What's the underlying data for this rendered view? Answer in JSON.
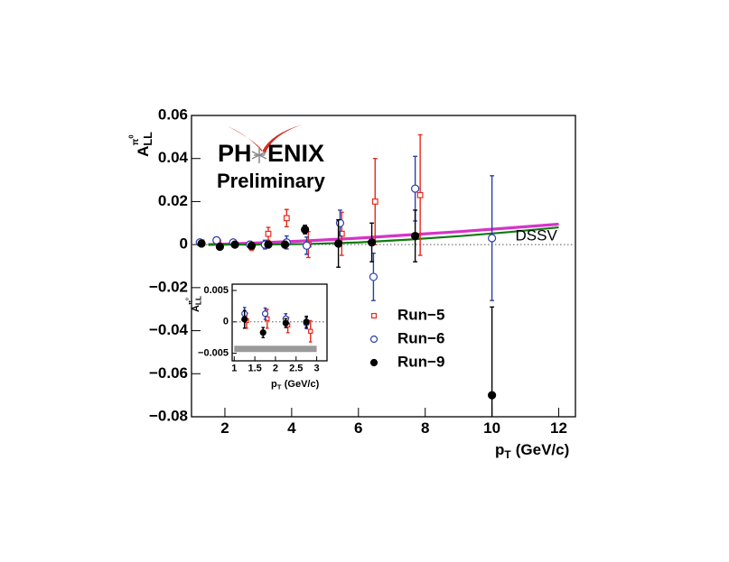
{
  "chart_data": [
    {
      "type": "scatter",
      "y_label": {
        "main": "A",
        "sub": "LL",
        "sup": "π",
        "sup2": "0"
      },
      "x_label": {
        "main": "p",
        "sub": "T",
        "unit": "(GeV/c)"
      },
      "logo": {
        "left": "PH",
        "right": "ENIX",
        "subtitle": "Preliminary"
      },
      "xlim": [
        1,
        12.5
      ],
      "xticks": [
        2,
        4,
        6,
        8,
        10,
        12
      ],
      "ylim": [
        -0.08,
        0.06
      ],
      "yticks": [
        {
          "value": -0.08,
          "label": "−0.08"
        },
        {
          "value": -0.06,
          "label": "−0.06"
        },
        {
          "value": -0.04,
          "label": "−0.04"
        },
        {
          "value": -0.02,
          "label": "−0.02"
        },
        0,
        0.02,
        0.04,
        0.06
      ],
      "legend": "center-right",
      "series": [
        {
          "name": "Run−5",
          "color": "#e8291c",
          "marker": "square-open",
          "x": [
            1.3,
            1.8,
            2.3,
            2.8,
            3.3,
            3.85,
            4.5,
            5.5,
            6.5,
            7.85
          ],
          "values": [
            0.001,
            0.001,
            0.0,
            -0.001,
            0.005,
            0.0123,
            0.0,
            0.005,
            0.02,
            0.023
          ],
          "errors": [
            0.001,
            0.0015,
            0.0012,
            0.0017,
            0.003,
            0.004,
            0.006,
            0.01,
            0.02,
            0.028
          ]
        },
        {
          "name": "Run−6",
          "color": "#2b3fa8",
          "marker": "circle-open",
          "x": [
            1.25,
            1.75,
            2.25,
            2.75,
            3.2,
            3.85,
            4.45,
            5.45,
            6.45,
            7.7,
            10
          ],
          "values": [
            0.001,
            0.002,
            0.001,
            0.0,
            0.0,
            0.001,
            -0.0005,
            0.01,
            -0.015,
            0.026,
            0.003
          ],
          "errors": [
            0.0012,
            0.0015,
            0.0012,
            0.0015,
            0.002,
            0.003,
            0.004,
            0.006,
            0.011,
            0.015,
            0.029
          ]
        },
        {
          "name": "Run−9",
          "color": "#000000",
          "marker": "circle-filled",
          "x": [
            1.3,
            1.85,
            2.3,
            2.8,
            3.3,
            3.8,
            4.4,
            5.4,
            6.4,
            7.7,
            10
          ],
          "values": [
            0.0005,
            -0.001,
            0.0,
            -0.0005,
            0.0,
            0.0,
            0.007,
            0.0005,
            0.001,
            0.004,
            -0.07
          ],
          "errors": [
            0.0008,
            0.001,
            0.001,
            0.001,
            0.0012,
            0.0015,
            0.002,
            0.011,
            0.009,
            0.012,
            0.041
          ]
        }
      ],
      "curves": [
        {
          "color": "#d633c8",
          "x": [
            1.5,
            3,
            4.5,
            6,
            7.5,
            9,
            10.5,
            12
          ],
          "values": [
            0.0,
            0.0008,
            0.0018,
            0.003,
            0.0045,
            0.006,
            0.0077,
            0.0095
          ]
        },
        {
          "name": "DSSV",
          "color": "#117a11",
          "x": [
            1.5,
            3,
            4.5,
            6,
            7.5,
            9,
            10.5,
            12
          ],
          "values": [
            0.0,
            0.0,
            0.0003,
            0.001,
            0.0023,
            0.0039,
            0.0058,
            0.008
          ]
        }
      ]
    },
    {
      "type": "scatter",
      "y_label": {
        "main": "A",
        "sub": "LL",
        "sup": "π",
        "sup2": "0"
      },
      "x_label": {
        "main": "p",
        "sub": "T",
        "unit": "(GeV/c)"
      },
      "xlim": [
        0.95,
        3.25
      ],
      "xticks": [
        1,
        1.5,
        2,
        2.5,
        3
      ],
      "ylim": [
        -0.0062,
        0.006
      ],
      "yticks": [
        {
          "value": -0.005,
          "label": "−0.005"
        },
        0,
        0.005
      ],
      "syst_band": {
        "x": [
          1,
          3
        ],
        "y": [
          -0.0048,
          -0.0038
        ],
        "color": "#9a9a9a"
      },
      "series": [
        {
          "color": "#e8291c",
          "marker": "square-open",
          "x": [
            1.3,
            1.8,
            2.3,
            2.85
          ],
          "values": [
            0.0002,
            0.0005,
            -0.0005,
            -0.0015
          ],
          "errors": [
            0.0012,
            0.0015,
            0.0012,
            0.0017
          ]
        },
        {
          "color": "#2b3fa8",
          "marker": "circle-open",
          "x": [
            1.25,
            1.75,
            2.25,
            2.75
          ],
          "values": [
            0.0013,
            0.0013,
            0.0005,
            -0.0002
          ],
          "errors": [
            0.001,
            0.0009,
            0.0008,
            0.0009
          ]
        },
        {
          "color": "#000000",
          "marker": "circle-filled",
          "x": [
            1.25,
            1.7,
            2.25,
            2.75
          ],
          "values": [
            0.0004,
            -0.0017,
            -0.0002,
            0.0
          ],
          "errors": [
            0.0014,
            0.0008,
            0.0007,
            0.0009
          ]
        }
      ]
    }
  ]
}
